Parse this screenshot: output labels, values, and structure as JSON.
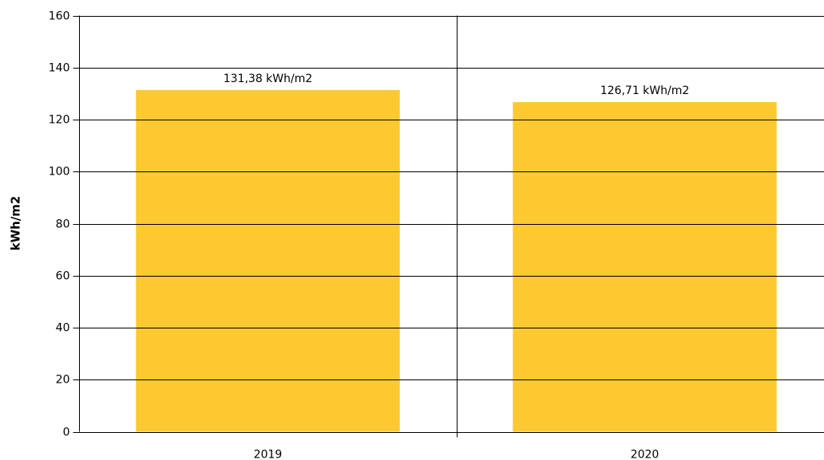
{
  "chart_data": {
    "type": "bar",
    "y_label": "kWh/m2",
    "categories": [
      "2019",
      "2020"
    ],
    "values": [
      131.38,
      126.71
    ],
    "value_labels": [
      "131,38 kWh/m2",
      "126,71 kWh/m2"
    ],
    "color": "#fcc931",
    "ylim": [
      0,
      160
    ],
    "yticks": [
      0,
      20,
      40,
      60,
      80,
      100,
      120,
      140,
      160
    ],
    "grid": true
  }
}
